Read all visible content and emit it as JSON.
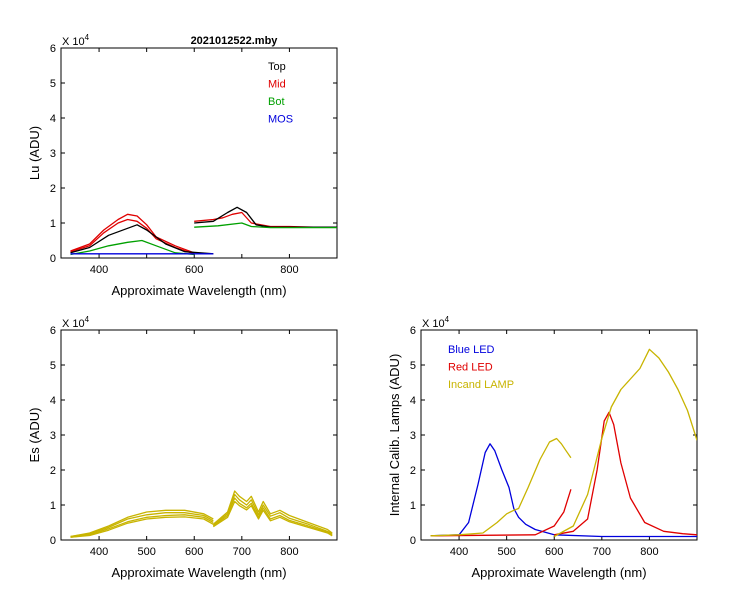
{
  "chart_data": [
    {
      "type": "line",
      "title": "2021012522.mby",
      "xlabel": "Approximate Wavelength (nm)",
      "ylabel": "Lu (ADU)",
      "exponent_label": "X 10",
      "exponent_sup": "4",
      "xlim": [
        320,
        900
      ],
      "ylim": [
        0,
        6
      ],
      "xticks": [
        400,
        500,
        600,
        700,
        800
      ],
      "xtick_labels": [
        "400",
        "",
        "600",
        "",
        "800"
      ],
      "yticks": [
        0,
        1,
        2,
        3,
        4,
        5,
        6
      ],
      "ytick_labels": [
        "0",
        "1",
        "2",
        "3",
        "4",
        "5",
        "6"
      ],
      "legend": {
        "placement": "top-right",
        "entries": [
          {
            "label": "Top",
            "color": "#000000"
          },
          {
            "label": "Mid",
            "color": "#e00000"
          },
          {
            "label": "Bot",
            "color": "#00a000"
          },
          {
            "label": "MOS",
            "color": "#0000dd"
          }
        ]
      },
      "series": [
        {
          "color": "#e00000",
          "segments": [
            {
              "x": [
                340,
                380,
                410,
                440,
                460,
                480,
                500,
                520,
                560,
                600
              ],
              "y": [
                0.2,
                0.4,
                0.8,
                1.1,
                1.25,
                1.2,
                0.95,
                0.6,
                0.35,
                0.15
              ]
            },
            {
              "x": [
                600,
                640,
                660,
                680,
                700,
                720,
                760,
                800,
                850,
                900
              ],
              "y": [
                1.05,
                1.1,
                1.15,
                1.25,
                1.3,
                1.0,
                0.9,
                0.9,
                0.88,
                0.88
              ]
            }
          ]
        },
        {
          "color": "#e00000",
          "segments": [
            {
              "x": [
                340,
                380,
                410,
                440,
                460,
                480,
                500,
                520,
                560,
                600
              ],
              "y": [
                0.18,
                0.35,
                0.72,
                1.0,
                1.1,
                1.05,
                0.85,
                0.55,
                0.3,
                0.12
              ]
            }
          ]
        },
        {
          "color": "#000000",
          "segments": [
            {
              "x": [
                340,
                380,
                420,
                460,
                480,
                500,
                540,
                580,
                640
              ],
              "y": [
                0.15,
                0.3,
                0.65,
                0.85,
                0.95,
                0.8,
                0.4,
                0.18,
                0.12
              ]
            },
            {
              "x": [
                600,
                640,
                670,
                690,
                710,
                730,
                760,
                800,
                900
              ],
              "y": [
                1.0,
                1.05,
                1.3,
                1.45,
                1.3,
                0.95,
                0.88,
                0.88,
                0.88
              ]
            }
          ]
        },
        {
          "color": "#00a000",
          "segments": [
            {
              "x": [
                340,
                380,
                420,
                460,
                490,
                520,
                560,
                600
              ],
              "y": [
                0.1,
                0.2,
                0.35,
                0.45,
                0.5,
                0.35,
                0.15,
                0.1
              ]
            },
            {
              "x": [
                600,
                650,
                700,
                720,
                760,
                800,
                900
              ],
              "y": [
                0.88,
                0.92,
                1.0,
                0.9,
                0.87,
                0.87,
                0.87
              ]
            }
          ]
        },
        {
          "color": "#0000dd",
          "segments": [
            {
              "x": [
                340,
                400,
                500,
                600,
                640
              ],
              "y": [
                0.12,
                0.12,
                0.12,
                0.12,
                0.12
              ]
            }
          ]
        }
      ]
    },
    {
      "type": "line",
      "title": "",
      "xlabel": "Approximate Wavelength (nm)",
      "ylabel": "Es  (ADU)",
      "exponent_label": "X 10",
      "exponent_sup": "4",
      "xlim": [
        320,
        900
      ],
      "ylim": [
        0,
        6
      ],
      "xticks": [
        400,
        500,
        600,
        700,
        800
      ],
      "xtick_labels": [
        "400",
        "500",
        "600",
        "700",
        "800"
      ],
      "yticks": [
        0,
        1,
        2,
        3,
        4,
        5,
        6
      ],
      "ytick_labels": [
        "0",
        "1",
        "2",
        "3",
        "4",
        "5",
        "6"
      ],
      "series": [
        {
          "color": "#c8b400",
          "segments": [
            {
              "x": [
                340,
                380,
                420,
                460,
                500,
                540,
                580,
                620,
                640
              ],
              "y": [
                0.1,
                0.2,
                0.4,
                0.65,
                0.8,
                0.85,
                0.85,
                0.75,
                0.6
              ]
            },
            {
              "x": [
                640,
                670,
                685,
                695,
                710,
                720,
                735,
                745,
                760,
                780,
                800,
                840,
                880,
                890
              ],
              "y": [
                0.45,
                0.8,
                1.4,
                1.25,
                1.1,
                1.25,
                0.8,
                1.1,
                0.75,
                0.85,
                0.7,
                0.5,
                0.3,
                0.2
              ]
            }
          ]
        },
        {
          "color": "#c8b400",
          "segments": [
            {
              "x": [
                340,
                380,
                420,
                460,
                500,
                540,
                580,
                620,
                640
              ],
              "y": [
                0.1,
                0.18,
                0.36,
                0.6,
                0.72,
                0.78,
                0.78,
                0.7,
                0.55
              ]
            },
            {
              "x": [
                640,
                670,
                685,
                695,
                710,
                720,
                735,
                745,
                760,
                780,
                800,
                840,
                880,
                890
              ],
              "y": [
                0.42,
                0.75,
                1.3,
                1.15,
                1.0,
                1.15,
                0.72,
                1.0,
                0.68,
                0.78,
                0.62,
                0.45,
                0.25,
                0.18
              ]
            }
          ]
        },
        {
          "color": "#c8b400",
          "segments": [
            {
              "x": [
                340,
                380,
                420,
                460,
                500,
                540,
                580,
                620,
                640
              ],
              "y": [
                0.08,
                0.15,
                0.32,
                0.52,
                0.65,
                0.7,
                0.72,
                0.65,
                0.5
              ]
            },
            {
              "x": [
                640,
                670,
                685,
                695,
                710,
                720,
                735,
                745,
                760,
                780,
                800,
                840,
                880,
                890
              ],
              "y": [
                0.4,
                0.7,
                1.2,
                1.05,
                0.92,
                1.05,
                0.65,
                0.92,
                0.6,
                0.7,
                0.56,
                0.4,
                0.22,
                0.15
              ]
            }
          ]
        },
        {
          "color": "#c8b400",
          "segments": [
            {
              "x": [
                340,
                380,
                420,
                460,
                500,
                540,
                580,
                620,
                640
              ],
              "y": [
                0.08,
                0.13,
                0.28,
                0.48,
                0.6,
                0.65,
                0.66,
                0.6,
                0.45
              ]
            },
            {
              "x": [
                640,
                670,
                685,
                695,
                710,
                720,
                735,
                745,
                760,
                780,
                800,
                840,
                880,
                890
              ],
              "y": [
                0.38,
                0.65,
                1.1,
                0.98,
                0.86,
                0.98,
                0.6,
                0.85,
                0.55,
                0.65,
                0.52,
                0.36,
                0.2,
                0.12
              ]
            }
          ]
        }
      ]
    },
    {
      "type": "line",
      "title": "",
      "xlabel": "Approximate Wavelength (nm)",
      "ylabel": "Internal Calib. Lamps  (ADU)",
      "exponent_label": "X 10",
      "exponent_sup": "4",
      "xlim": [
        320,
        900
      ],
      "ylim": [
        0,
        6
      ],
      "xticks": [
        400,
        500,
        600,
        700,
        800
      ],
      "xtick_labels": [
        "400",
        "500",
        "600",
        "700",
        "800"
      ],
      "yticks": [
        0,
        1,
        2,
        3,
        4,
        5,
        6
      ],
      "ytick_labels": [
        "0",
        "1",
        "2",
        "3",
        "4",
        "5",
        "6"
      ],
      "legend": {
        "placement": "top-left",
        "entries": [
          {
            "label": "Blue LED",
            "color": "#0000dd"
          },
          {
            "label": "Red LED",
            "color": "#e00000"
          },
          {
            "label": "Incand LAMP",
            "color": "#c8b400"
          }
        ]
      },
      "series": [
        {
          "color": "#0000dd",
          "segments": [
            {
              "x": [
                340,
                400,
                420,
                440,
                455,
                465,
                475,
                490,
                505,
                515,
                525,
                540,
                560,
                600,
                700,
                800,
                900
              ],
              "y": [
                0.12,
                0.15,
                0.5,
                1.6,
                2.5,
                2.75,
                2.55,
                2.0,
                1.5,
                0.9,
                0.65,
                0.45,
                0.3,
                0.15,
                0.1,
                0.1,
                0.1
              ]
            }
          ]
        },
        {
          "color": "#e00000",
          "segments": [
            {
              "x": [
                340,
                560,
                600,
                620,
                635
              ],
              "y": [
                0.12,
                0.15,
                0.4,
                0.8,
                1.45
              ]
            },
            {
              "x": [
                600,
                640,
                670,
                690,
                705,
                715,
                725,
                740,
                760,
                790,
                830,
                870,
                900
              ],
              "y": [
                0.15,
                0.25,
                0.6,
                2.0,
                3.4,
                3.65,
                3.3,
                2.2,
                1.2,
                0.5,
                0.25,
                0.18,
                0.15
              ]
            }
          ]
        },
        {
          "color": "#c8b400",
          "segments": [
            {
              "x": [
                340,
                400,
                450,
                480,
                500,
                515,
                525,
                545,
                570,
                590,
                605,
                615,
                625,
                635
              ],
              "y": [
                0.12,
                0.15,
                0.2,
                0.5,
                0.75,
                0.85,
                0.9,
                1.5,
                2.3,
                2.8,
                2.9,
                2.75,
                2.55,
                2.35
              ]
            },
            {
              "x": [
                600,
                640,
                670,
                700,
                720,
                740,
                760,
                780,
                800,
                820,
                840,
                860,
                880,
                900
              ],
              "y": [
                0.1,
                0.4,
                1.3,
                2.9,
                3.8,
                4.3,
                4.6,
                4.9,
                5.45,
                5.2,
                4.8,
                4.3,
                3.7,
                2.85
              ]
            }
          ]
        }
      ]
    }
  ]
}
